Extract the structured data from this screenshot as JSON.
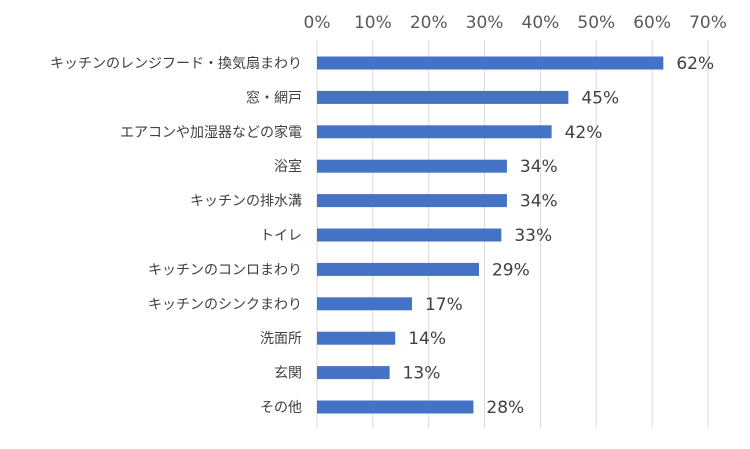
{
  "chart_data": {
    "type": "bar",
    "orientation": "horizontal",
    "title": "",
    "xlabel": "",
    "ylabel": "",
    "xlim": [
      0,
      70
    ],
    "x_ticks": [
      "0%",
      "10%",
      "20%",
      "30%",
      "40%",
      "50%",
      "60%",
      "70%"
    ],
    "x_tick_values": [
      0,
      10,
      20,
      30,
      40,
      50,
      60,
      70
    ],
    "axis_position": "top",
    "grid": true,
    "categories": [
      "キッチンのレンジフード・換気扇まわり",
      "窓・網戸",
      "エアコンや加湿器などの家電",
      "浴室",
      "キッチンの排水溝",
      "トイレ",
      "キッチンのコンロまわり",
      "キッチンのシンクまわり",
      "洗面所",
      "玄関",
      "その他"
    ],
    "values": [
      62,
      45,
      42,
      34,
      34,
      33,
      29,
      17,
      14,
      13,
      28
    ],
    "data_labels": [
      "62%",
      "45%",
      "42%",
      "34%",
      "34%",
      "33%",
      "29%",
      "17%",
      "14%",
      "13%",
      "28%"
    ],
    "bar_color": "#4472C4",
    "grid_color": "#D9D9D9"
  }
}
